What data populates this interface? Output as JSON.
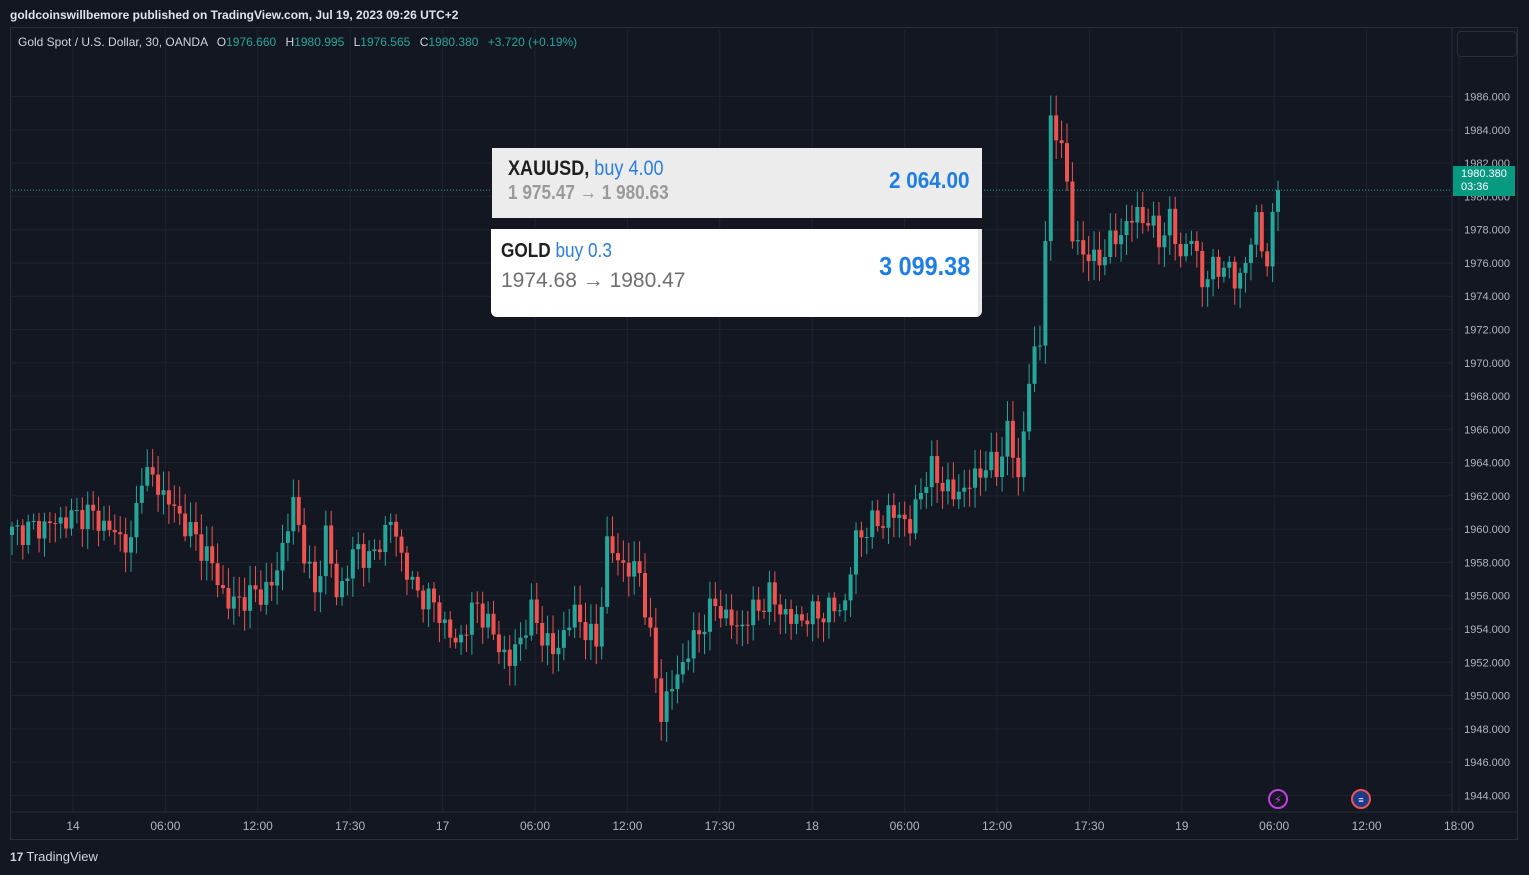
{
  "header": {
    "publisher_line": "goldcoinswillbemore published on TradingView.com, Jul 19, 2023 09:26 UTC+2"
  },
  "legend": {
    "symbol": "Gold Spot / U.S. Dollar, 30, OANDA",
    "o_label": "O",
    "o_value": "1976.660",
    "h_label": "H",
    "h_value": "1980.995",
    "l_label": "L",
    "l_value": "1976.565",
    "c_label": "C",
    "c_value": "1980.380",
    "change": "+3.720 (+0.19%)",
    "value_color": "#26a69a"
  },
  "price_badge": {
    "price": "1980.380",
    "countdown": "03:36",
    "color": "#089981"
  },
  "trade_cards": [
    {
      "symbol": "XAUUSD,",
      "side": "buy 4.00",
      "prices": "1 975.47 → 1 980.63",
      "profit": "2 064.00"
    },
    {
      "symbol": "GOLD",
      "side": "buy 0.3",
      "prices": "1974.68 → 1980.47",
      "profit": "3 099.38"
    }
  ],
  "footer": {
    "brand": "TradingView",
    "logo_text": "17"
  },
  "icons": {
    "bolt": "lightning-icon",
    "flag": "us-flag-icon"
  },
  "chart_data": {
    "type": "candlestick",
    "ylim": [
      1943,
      1988.5
    ],
    "y_ticks": [
      "1944.000",
      "1946.000",
      "1948.000",
      "1950.000",
      "1952.000",
      "1954.000",
      "1956.000",
      "1958.000",
      "1960.000",
      "1962.000",
      "1964.000",
      "1966.000",
      "1968.000",
      "1970.000",
      "1972.000",
      "1974.000",
      "1976.000",
      "1978.000",
      "1980.000",
      "1982.000",
      "1984.000",
      "1986.000"
    ],
    "x_ticks": [
      "14",
      "06:00",
      "12:00",
      "17:30",
      "17",
      "06:00",
      "12:00",
      "17:30",
      "18",
      "06:00",
      "12:00",
      "17:30",
      "19",
      "06:00",
      "12:00",
      "18:00"
    ],
    "last_price": 1980.38,
    "colors": {
      "up": "#26a69a",
      "down": "#ef5350",
      "grid": "#1f2330",
      "text": "#b2b5be"
    },
    "anchors": [
      [
        0,
        1959.8
      ],
      [
        6,
        1960.2
      ],
      [
        14,
        1961.0
      ],
      [
        18,
        1960.0
      ],
      [
        22,
        1959.0
      ],
      [
        24,
        1963.5
      ],
      [
        26,
        1963.0
      ],
      [
        30,
        1961.2
      ],
      [
        36,
        1958.5
      ],
      [
        40,
        1955.5
      ],
      [
        48,
        1956.5
      ],
      [
        52,
        1961.5
      ],
      [
        56,
        1956.0
      ],
      [
        58,
        1959.8
      ],
      [
        60,
        1956.0
      ],
      [
        64,
        1959.0
      ],
      [
        66,
        1958.0
      ],
      [
        70,
        1960.5
      ],
      [
        74,
        1956.5
      ],
      [
        78,
        1955.5
      ],
      [
        82,
        1953.0
      ],
      [
        86,
        1955.5
      ],
      [
        90,
        1953.0
      ],
      [
        92,
        1952.0
      ],
      [
        96,
        1955.0
      ],
      [
        100,
        1952.5
      ],
      [
        104,
        1955.0
      ],
      [
        108,
        1953.0
      ],
      [
        110,
        1959.0
      ],
      [
        114,
        1957.5
      ],
      [
        116,
        1957.5
      ],
      [
        120,
        1949.0
      ],
      [
        124,
        1952.0
      ],
      [
        128,
        1954.5
      ],
      [
        130,
        1955.5
      ],
      [
        134,
        1954.0
      ],
      [
        140,
        1956.0
      ],
      [
        144,
        1954.5
      ],
      [
        150,
        1955.0
      ],
      [
        154,
        1955.5
      ],
      [
        156,
        1959.5
      ],
      [
        160,
        1960.5
      ],
      [
        164,
        1961.0
      ],
      [
        166,
        1960.0
      ],
      [
        168,
        1962.5
      ],
      [
        170,
        1963.5
      ],
      [
        174,
        1962.0
      ],
      [
        178,
        1963.0
      ],
      [
        180,
        1964.0
      ],
      [
        182,
        1963.5
      ],
      [
        184,
        1966.0
      ],
      [
        186,
        1963.0
      ],
      [
        188,
        1969.0
      ],
      [
        190,
        1971.5
      ],
      [
        192,
        1984.0
      ],
      [
        194,
        1983.5
      ],
      [
        196,
        1977.5
      ],
      [
        200,
        1976.0
      ],
      [
        204,
        1977.5
      ],
      [
        208,
        1979.0
      ],
      [
        210,
        1978.5
      ],
      [
        212,
        1977.5
      ],
      [
        214,
        1978.5
      ],
      [
        216,
        1976.5
      ],
      [
        218,
        1977.5
      ],
      [
        220,
        1975.0
      ],
      [
        222,
        1975.5
      ],
      [
        224,
        1976.0
      ],
      [
        226,
        1974.8
      ],
      [
        228,
        1976.0
      ],
      [
        230,
        1978.5
      ],
      [
        232,
        1976.0
      ],
      [
        234,
        1980.4
      ]
    ]
  }
}
